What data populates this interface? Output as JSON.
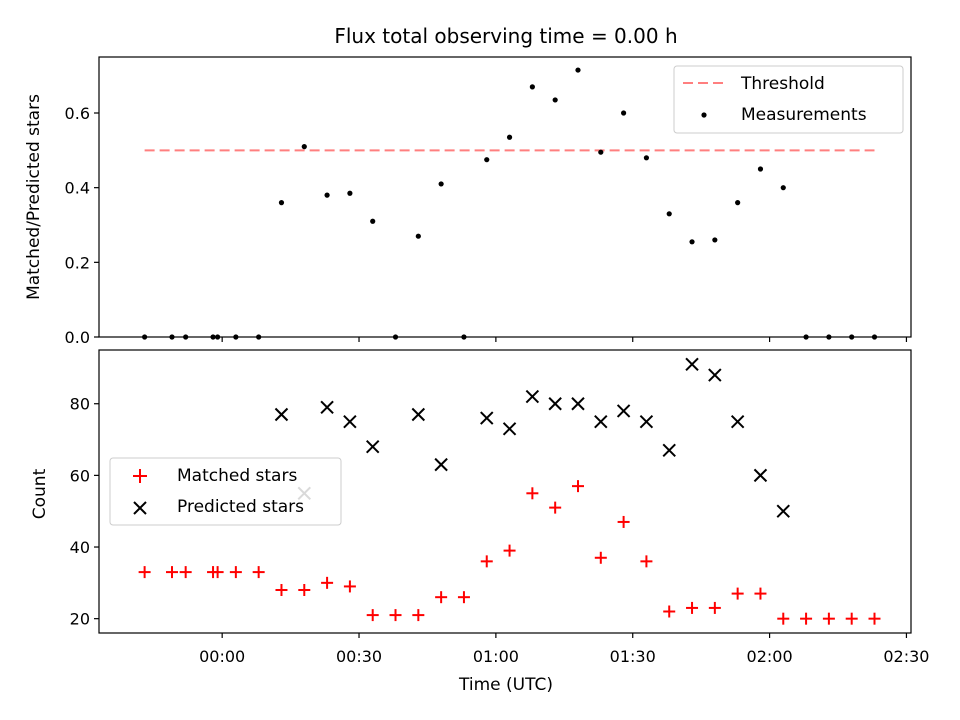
{
  "chart_data": [
    {
      "type": "scatter",
      "title": "Flux total observing time = 0.00 h",
      "ylabel": "Matched/Predicted stars",
      "xlabel": "",
      "ylim": [
        0,
        0.75
      ],
      "yticks": [
        "0.0",
        "0.2",
        "0.4",
        "0.6"
      ],
      "legend_position": "top-right",
      "threshold": {
        "name": "Threshold",
        "value": 0.5,
        "x_range": [
          "23:43",
          "02:23"
        ],
        "color": "#ff7f7f"
      },
      "series": [
        {
          "name": "Measurements",
          "color": "#000000",
          "marker": "dot",
          "x": [
            "23:43",
            "23:49",
            "23:52",
            "23:58",
            "23:59",
            "00:03",
            "00:08",
            "00:13",
            "00:18",
            "00:23",
            "00:28",
            "00:33",
            "00:38",
            "00:43",
            "00:48",
            "00:53",
            "00:58",
            "01:03",
            "01:08",
            "01:13",
            "01:18",
            "01:23",
            "01:28",
            "01:33",
            "01:38",
            "01:43",
            "01:48",
            "01:53",
            "01:58",
            "02:03",
            "02:08",
            "02:13",
            "02:18",
            "02:23"
          ],
          "y": [
            0,
            0,
            0,
            0,
            0,
            0,
            0,
            0.36,
            0.51,
            0.38,
            0.385,
            0.31,
            0,
            0.27,
            0.41,
            0,
            0.475,
            0.535,
            0.67,
            0.635,
            0.715,
            0.495,
            0.6,
            0.48,
            0.33,
            0.255,
            0.26,
            0.36,
            0.45,
            0.4,
            0,
            0,
            0,
            0
          ]
        }
      ]
    },
    {
      "type": "scatter",
      "xlabel": "Time (UTC)",
      "ylabel": "Count",
      "xlim": [
        "23:33",
        "02:31"
      ],
      "ylim": [
        16,
        95
      ],
      "xticks": [
        "00:00",
        "00:30",
        "01:00",
        "01:30",
        "02:00",
        "02:30"
      ],
      "yticks": [
        "20",
        "40",
        "60",
        "80"
      ],
      "legend_position": "center-left",
      "series": [
        {
          "name": "Matched stars",
          "color": "#ff0000",
          "marker": "plus",
          "x": [
            "23:43",
            "23:49",
            "23:52",
            "23:58",
            "23:59",
            "00:03",
            "00:08",
            "00:13",
            "00:18",
            "00:23",
            "00:28",
            "00:33",
            "00:38",
            "00:43",
            "00:48",
            "00:53",
            "00:58",
            "01:03",
            "01:08",
            "01:13",
            "01:18",
            "01:23",
            "01:28",
            "01:33",
            "01:38",
            "01:43",
            "01:48",
            "01:53",
            "01:58",
            "02:03",
            "02:08",
            "02:13",
            "02:18",
            "02:23"
          ],
          "y": [
            33,
            33,
            33,
            33,
            33,
            33,
            33,
            28,
            28,
            30,
            29,
            21,
            21,
            21,
            26,
            26,
            36,
            39,
            55,
            51,
            57,
            37,
            47,
            36,
            22,
            23,
            23,
            27,
            27,
            20,
            20,
            20,
            20,
            20
          ]
        },
        {
          "name": "Predicted stars",
          "color": "#000000",
          "marker": "x",
          "x": [
            "00:13",
            "00:18",
            "00:23",
            "00:28",
            "00:33",
            "00:43",
            "00:48",
            "00:58",
            "01:03",
            "01:08",
            "01:13",
            "01:18",
            "01:23",
            "01:28",
            "01:33",
            "01:38",
            "01:43",
            "01:48",
            "01:53",
            "01:58",
            "02:03"
          ],
          "y": [
            77,
            55,
            79,
            75,
            68,
            77,
            63,
            76,
            73,
            82,
            80,
            80,
            75,
            78,
            75,
            67,
            91,
            88,
            75,
            60,
            50
          ]
        }
      ]
    }
  ]
}
